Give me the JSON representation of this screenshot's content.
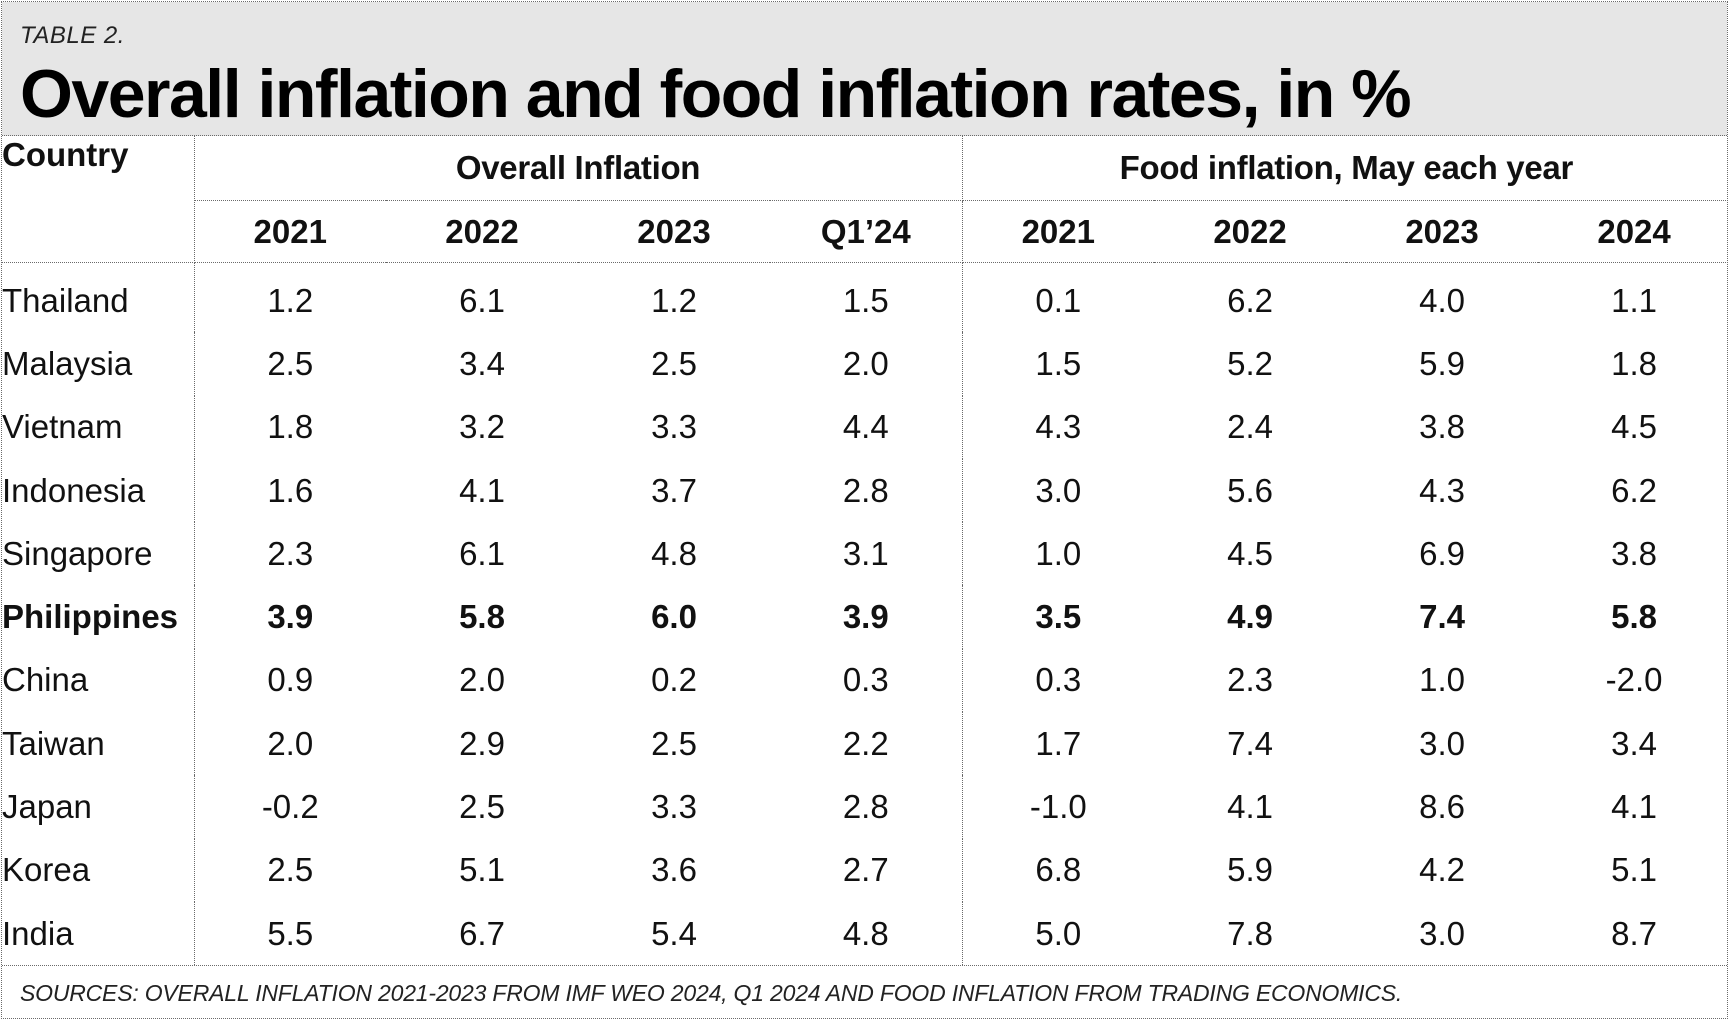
{
  "header": {
    "label": "TABLE 2.",
    "title": "Overall inflation and food inflation rates, in %"
  },
  "table": {
    "country_header": "Country",
    "group_overall": "Overall Inflation",
    "group_food": "Food inflation, May each year",
    "overall_years": [
      "2021",
      "2022",
      "2023",
      "Q1’24"
    ],
    "food_years": [
      "2021",
      "2022",
      "2023",
      "2024"
    ],
    "rows": [
      {
        "country": "Thailand",
        "overall": [
          "1.2",
          "6.1",
          "1.2",
          "1.5"
        ],
        "food": [
          "0.1",
          "6.2",
          "4.0",
          "1.1"
        ]
      },
      {
        "country": "Malaysia",
        "overall": [
          "2.5",
          "3.4",
          "2.5",
          "2.0"
        ],
        "food": [
          "1.5",
          "5.2",
          "5.9",
          "1.8"
        ]
      },
      {
        "country": "Vietnam",
        "overall": [
          "1.8",
          "3.2",
          "3.3",
          "4.4"
        ],
        "food": [
          "4.3",
          "2.4",
          "3.8",
          "4.5"
        ]
      },
      {
        "country": "Indonesia",
        "overall": [
          "1.6",
          "4.1",
          "3.7",
          "2.8"
        ],
        "food": [
          "3.0",
          "5.6",
          "4.3",
          "6.2"
        ]
      },
      {
        "country": "Singapore",
        "overall": [
          "2.3",
          "6.1",
          "4.8",
          "3.1"
        ],
        "food": [
          "1.0",
          "4.5",
          "6.9",
          "3.8"
        ]
      },
      {
        "country": "Philippines",
        "overall": [
          "3.9",
          "5.8",
          "6.0",
          "3.9"
        ],
        "food": [
          "3.5",
          "4.9",
          "7.4",
          "5.8"
        ]
      },
      {
        "country": "China",
        "overall": [
          "0.9",
          "2.0",
          "0.2",
          "0.3"
        ],
        "food": [
          "0.3",
          "2.3",
          "1.0",
          "-2.0"
        ]
      },
      {
        "country": "Taiwan",
        "overall": [
          "2.0",
          "2.9",
          "2.5",
          "2.2"
        ],
        "food": [
          "1.7",
          "7.4",
          "3.0",
          "3.4"
        ]
      },
      {
        "country": "Japan",
        "overall": [
          "-0.2",
          "2.5",
          "3.3",
          "2.8"
        ],
        "food": [
          "-1.0",
          "4.1",
          "8.6",
          "4.1"
        ]
      },
      {
        "country": "Korea",
        "overall": [
          "2.5",
          "5.1",
          "3.6",
          "2.7"
        ],
        "food": [
          "6.8",
          "5.9",
          "4.2",
          "5.1"
        ]
      },
      {
        "country": "India",
        "overall": [
          "5.5",
          "6.7",
          "5.4",
          "4.8"
        ],
        "food": [
          "5.0",
          "7.8",
          "3.0",
          "8.7"
        ]
      }
    ]
  },
  "footer": {
    "sources": "SOURCES: OVERALL INFLATION 2021-2023 FROM IMF WEO 2024, Q1 2024 AND FOOD INFLATION FROM TRADING ECONOMICS."
  }
}
